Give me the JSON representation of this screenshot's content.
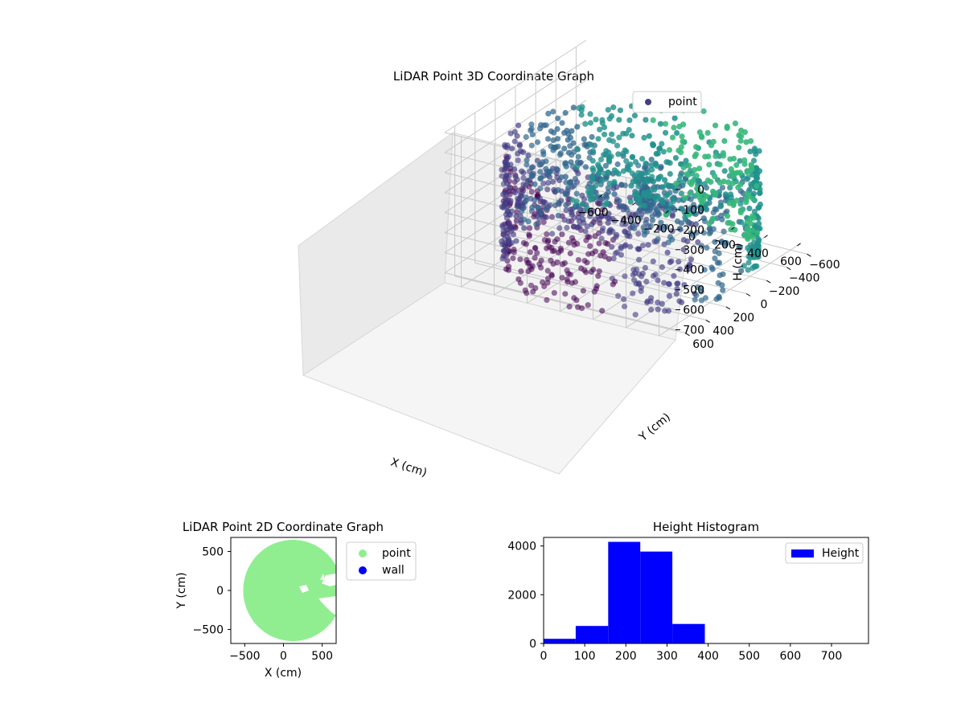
{
  "colors": {
    "viridis_dark": "#440154",
    "viridis_purple": "#433e85",
    "viridis_blue": "#31688e",
    "viridis_teal": "#21918c",
    "viridis_green": "#35b779",
    "point_2d": "#90ee90",
    "wall_2d": "#0000ff",
    "histogram": "#0000ff"
  },
  "chart_data": [
    {
      "type": "scatter",
      "title": "LiDAR Point 3D Coordinate Graph",
      "xlabel": "X (cm)",
      "ylabel": "Y (cm)",
      "zlabel": "H (cm)",
      "xlim": [
        -700,
        700
      ],
      "ylim": [
        -700,
        700
      ],
      "zlim": [
        0,
        750
      ],
      "z_inverted": true,
      "x_ticks": [
        "−600",
        "−400",
        "−200",
        "0",
        "200",
        "400",
        "600"
      ],
      "y_ticks": [
        "−600",
        "−400",
        "−200",
        "0",
        "200",
        "400",
        "600"
      ],
      "z_ticks": [
        "0",
        "100",
        "200",
        "300",
        "400",
        "500",
        "600",
        "700"
      ],
      "legend": {
        "entries": [
          "point"
        ],
        "position": "top-right"
      },
      "colormap": "viridis",
      "description_shape": "ring of points near radius ~650 cm, heights ~50–750 cm"
    },
    {
      "type": "scatter",
      "title": "LiDAR Point 2D Coordinate Graph",
      "xlabel": "X (cm)",
      "ylabel": "Y (cm)",
      "xlim": [
        -680,
        680
      ],
      "ylim": [
        -680,
        680
      ],
      "x_ticks": [
        "−500",
        "0",
        "500"
      ],
      "y_ticks": [
        "−500",
        "0",
        "500"
      ],
      "legend": {
        "entries": [
          "point",
          "wall"
        ],
        "position": "outside-right"
      },
      "series": [
        {
          "name": "point",
          "color": "#90ee90"
        },
        {
          "name": "wall",
          "color": "#0000ff"
        }
      ]
    },
    {
      "type": "bar",
      "title": "Height Histogram",
      "xlabel": "",
      "ylabel": "",
      "xlim": [
        0,
        790
      ],
      "ylim": [
        0,
        4350
      ],
      "x_ticks": [
        "0",
        "100",
        "200",
        "300",
        "400",
        "500",
        "600",
        "700"
      ],
      "y_ticks": [
        "0",
        "2000",
        "4000"
      ],
      "legend": {
        "entries": [
          "Height"
        ],
        "position": "top-right"
      },
      "bins": [
        {
          "start": 0,
          "end": 78,
          "count": 190
        },
        {
          "start": 78,
          "end": 157,
          "count": 720
        },
        {
          "start": 157,
          "end": 235,
          "count": 4170
        },
        {
          "start": 235,
          "end": 313,
          "count": 3770
        },
        {
          "start": 313,
          "end": 392,
          "count": 800
        },
        {
          "start": 392,
          "end": 470,
          "count": 5
        },
        {
          "start": 470,
          "end": 548,
          "count": 0
        },
        {
          "start": 548,
          "end": 627,
          "count": 0
        },
        {
          "start": 627,
          "end": 705,
          "count": 0
        },
        {
          "start": 705,
          "end": 783,
          "count": 0
        }
      ]
    }
  ]
}
